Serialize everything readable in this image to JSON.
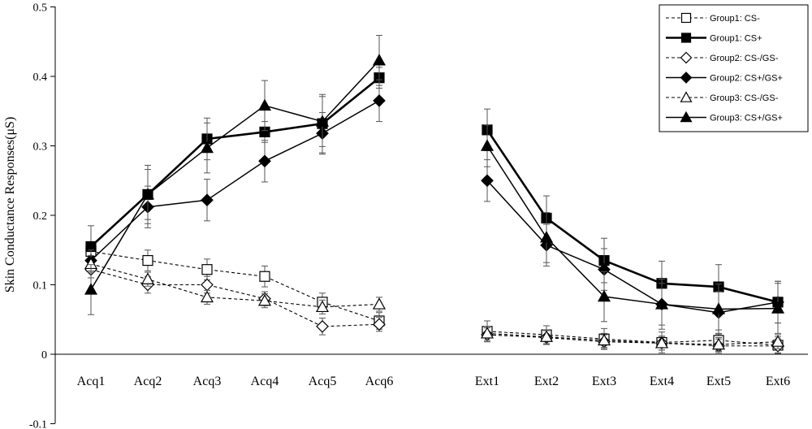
{
  "chart_data": {
    "type": "line",
    "title": "",
    "xlabel": "",
    "ylabel": "Skin Conductance Responses(μS)",
    "ylim": [
      -0.1,
      0.5
    ],
    "yticks": [
      "-0.1",
      "0",
      "0.1",
      "0.2",
      "0.3",
      "0.4",
      "0.5"
    ],
    "ytick_values": [
      -0.1,
      0,
      0.1,
      0.2,
      0.3,
      0.4,
      0.5
    ],
    "categories": [
      "Acq1",
      "Acq2",
      "Acq3",
      "Acq4",
      "Acq5",
      "Acq6",
      "Ext1",
      "Ext2",
      "Ext3",
      "Ext4",
      "Ext5",
      "Ext6"
    ],
    "legend_position": "top-right",
    "grid": false,
    "series": [
      {
        "name": "Group1:  CS-",
        "marker": "square",
        "fill": "open",
        "line": "dashed",
        "values": [
          0.148,
          0.135,
          0.122,
          0.112,
          0.075,
          0.048,
          0.033,
          0.028,
          0.022,
          0.017,
          0.02,
          0.013
        ],
        "errors": [
          0.012,
          0.015,
          0.015,
          0.015,
          0.013,
          0.012,
          0.015,
          0.013,
          0.015,
          0.015,
          0.015,
          0.012
        ]
      },
      {
        "name": "Group1:  CS+",
        "marker": "square",
        "fill": "filled",
        "line": "solid-thick",
        "values": [
          0.155,
          0.23,
          0.31,
          0.32,
          0.332,
          0.398,
          0.323,
          0.196,
          0.135,
          0.102,
          0.097,
          0.075
        ],
        "errors": [
          0.03,
          0.042,
          0.03,
          0.015,
          0.042,
          0.015,
          0.03,
          0.032,
          0.032,
          0.032,
          0.032,
          0.03
        ]
      },
      {
        "name": "Group2:  CS-/GS-",
        "marker": "diamond",
        "fill": "open",
        "line": "dashed",
        "values": [
          0.122,
          0.1,
          0.1,
          0.08,
          0.04,
          0.043,
          0.028,
          0.024,
          0.018,
          0.016,
          0.012,
          0.012
        ],
        "errors": [
          0.012,
          0.012,
          0.012,
          0.01,
          0.012,
          0.01,
          0.01,
          0.01,
          0.01,
          0.01,
          0.01,
          0.01
        ]
      },
      {
        "name": "Group2:  CS+/GS+",
        "marker": "diamond",
        "fill": "filled",
        "line": "solid",
        "values": [
          0.135,
          0.212,
          0.222,
          0.278,
          0.318,
          0.365,
          0.25,
          0.157,
          0.122,
          0.072,
          0.06,
          0.075
        ],
        "errors": [
          0.015,
          0.03,
          0.03,
          0.03,
          0.03,
          0.03,
          0.03,
          0.03,
          0.03,
          0.03,
          0.03,
          0.03
        ]
      },
      {
        "name": "Group3:  CS-/GS-",
        "marker": "triangle",
        "fill": "open",
        "line": "dashed",
        "values": [
          0.13,
          0.108,
          0.082,
          0.077,
          0.068,
          0.072,
          0.03,
          0.025,
          0.02,
          0.016,
          0.014,
          0.018
        ],
        "errors": [
          0.012,
          0.01,
          0.01,
          0.01,
          0.01,
          0.01,
          0.01,
          0.01,
          0.01,
          0.01,
          0.01,
          0.01
        ]
      },
      {
        "name": "Group3:  CS+/GS+",
        "marker": "triangle",
        "fill": "filled",
        "line": "solid",
        "values": [
          0.093,
          0.23,
          0.297,
          0.358,
          0.335,
          0.423,
          0.3,
          0.168,
          0.083,
          0.072,
          0.065,
          0.066
        ],
        "errors": [
          0.036,
          0.036,
          0.036,
          0.036,
          0.036,
          0.036,
          0.03,
          0.036,
          0.036,
          0.036,
          0.036,
          0.036
        ]
      }
    ]
  }
}
